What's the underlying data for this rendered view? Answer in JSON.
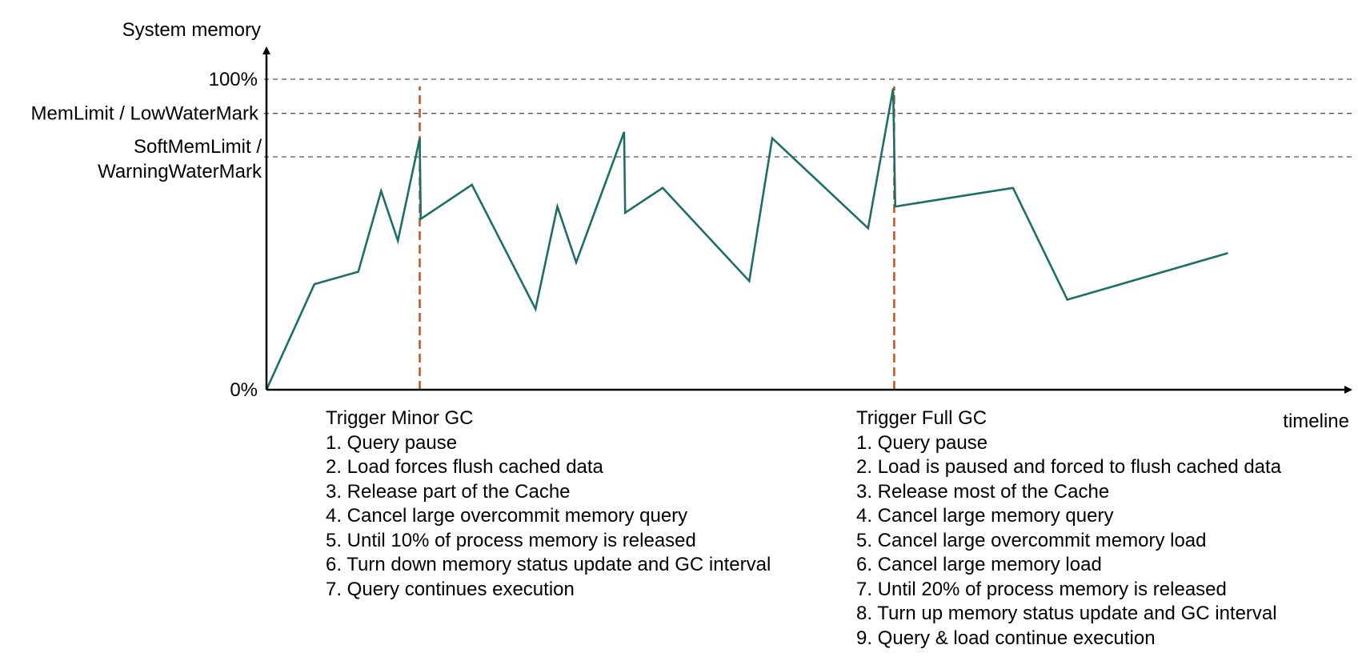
{
  "chart_data": {
    "type": "line",
    "ylabel": "System memory",
    "xlabel": "timeline",
    "y_ticks": [
      "100%",
      "0%"
    ],
    "ylim": [
      0,
      100
    ],
    "thresholds": [
      {
        "label": "100%",
        "value": 100
      },
      {
        "label": "MemLimit / LowWaterMark",
        "value": 89
      },
      {
        "label": "SoftMemLimit / WarningWaterMark",
        "label_lines": [
          "SoftMemLimit /",
          "WarningWaterMark"
        ],
        "value": 75
      }
    ],
    "series": [
      {
        "color": "#1e6e68",
        "x": [
          0,
          4.6,
          8.8,
          11.0,
          12.6,
          14.7,
          14.8,
          19.7,
          25.8,
          27.9,
          29.7,
          34.3,
          34.4,
          38.0,
          46.3,
          48.5,
          57.7,
          60.1,
          60.3,
          71.6,
          76.8,
          92.2
        ],
        "y": [
          0,
          34,
          38,
          64,
          48,
          81,
          55,
          66,
          26,
          59,
          41,
          83,
          57,
          65,
          35,
          81,
          52,
          97,
          59,
          65,
          29,
          44
        ]
      }
    ],
    "events": [
      {
        "x": 14.7,
        "title": "Trigger Minor GC"
      },
      {
        "x": 60.2,
        "title": "Trigger Full GC"
      }
    ],
    "grid": false,
    "legend": "none"
  },
  "annotations": {
    "minor": {
      "title": "Trigger Minor GC",
      "steps": [
        "1. Query pause",
        "2. Load forces flush cached data",
        "3. Release part of the Cache",
        "4. Cancel large overcommit memory query",
        "5. Until 10% of process memory is released",
        "6. Turn down memory status update and GC interval",
        "7. Query continues execution"
      ]
    },
    "full": {
      "title": "Trigger Full GC",
      "steps": [
        "1. Query pause",
        "2. Load is paused and forced to flush cached data",
        "3. Release most of the Cache",
        "4. Cancel large memory query",
        "5. Cancel large overcommit memory load",
        "6. Cancel large memory load",
        "7. Until 20% of process memory is released",
        "8. Turn up memory status update and GC interval",
        "9. Query & load continue execution"
      ]
    }
  },
  "colors": {
    "line": "#1e6e68",
    "event": "#c8501e",
    "threshold": "#555555",
    "axis": "#000000"
  }
}
